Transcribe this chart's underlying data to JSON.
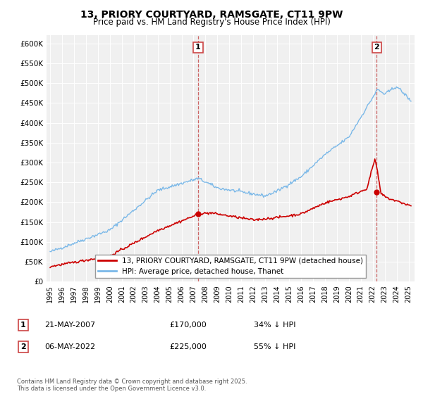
{
  "title": "13, PRIORY COURTYARD, RAMSGATE, CT11 9PW",
  "subtitle": "Price paid vs. HM Land Registry's House Price Index (HPI)",
  "footnote": "Contains HM Land Registry data © Crown copyright and database right 2025.\nThis data is licensed under the Open Government Licence v3.0.",
  "legend_line1": "13, PRIORY COURTYARD, RAMSGATE, CT11 9PW (detached house)",
  "legend_line2": "HPI: Average price, detached house, Thanet",
  "transaction1": {
    "label": "1",
    "date": "21-MAY-2007",
    "price": "£170,000",
    "hpi": "34% ↓ HPI"
  },
  "transaction2": {
    "label": "2",
    "date": "06-MAY-2022",
    "price": "£225,000",
    "hpi": "55% ↓ HPI"
  },
  "hpi_color": "#7ab8e8",
  "price_color": "#cc0000",
  "marker1_year": 2007.38,
  "marker2_year": 2022.34,
  "sale1_price": 170000,
  "sale2_price": 225000,
  "background_color": "#f0f0f0",
  "ylim": [
    0,
    620000
  ],
  "xlim_start": 1994.7,
  "xlim_end": 2025.5,
  "yticks": [
    0,
    50000,
    100000,
    150000,
    200000,
    250000,
    300000,
    350000,
    400000,
    450000,
    500000,
    550000,
    600000
  ],
  "xtick_years": [
    1995,
    1996,
    1997,
    1998,
    1999,
    2000,
    2001,
    2002,
    2003,
    2004,
    2005,
    2006,
    2007,
    2008,
    2009,
    2010,
    2011,
    2012,
    2013,
    2014,
    2015,
    2016,
    2017,
    2018,
    2019,
    2020,
    2021,
    2022,
    2023,
    2024,
    2025
  ]
}
